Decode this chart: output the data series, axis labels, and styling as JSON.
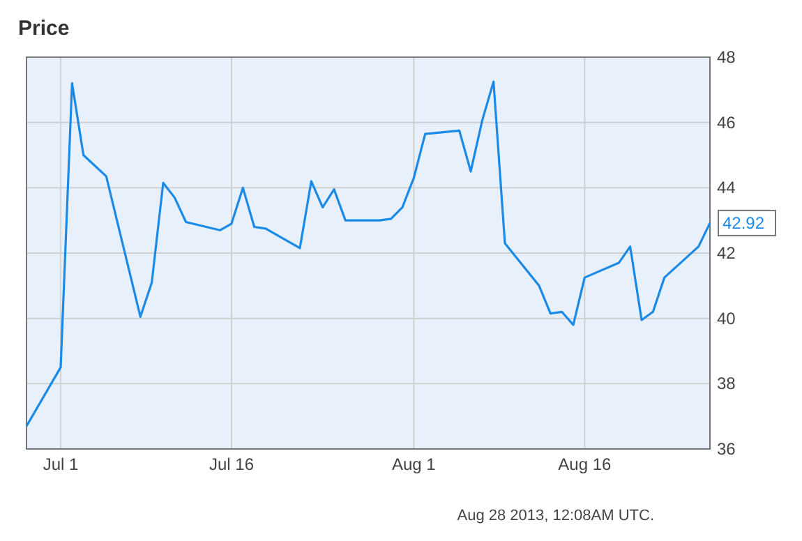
{
  "chart_data": {
    "type": "line",
    "title": "Price",
    "x": [
      "2013-06-28",
      "2013-07-01",
      "2013-07-02",
      "2013-07-03",
      "2013-07-05",
      "2013-07-08",
      "2013-07-09",
      "2013-07-10",
      "2013-07-11",
      "2013-07-12",
      "2013-07-15",
      "2013-07-16",
      "2013-07-17",
      "2013-07-18",
      "2013-07-19",
      "2013-07-22",
      "2013-07-23",
      "2013-07-24",
      "2013-07-25",
      "2013-07-26",
      "2013-07-29",
      "2013-07-30",
      "2013-07-31",
      "2013-08-01",
      "2013-08-02",
      "2013-08-05",
      "2013-08-06",
      "2013-08-07",
      "2013-08-08",
      "2013-08-09",
      "2013-08-12",
      "2013-08-13",
      "2013-08-14",
      "2013-08-15",
      "2013-08-16",
      "2013-08-19",
      "2013-08-20",
      "2013-08-21",
      "2013-08-22",
      "2013-08-23",
      "2013-08-26",
      "2013-08-27"
    ],
    "series": [
      {
        "color": "#1a8ae6",
        "values": [
          36.7,
          38.5,
          47.2,
          45.0,
          44.35,
          40.05,
          41.1,
          44.15,
          43.7,
          42.95,
          42.7,
          42.9,
          44.0,
          42.8,
          42.75,
          42.15,
          44.2,
          43.4,
          43.95,
          43.0,
          43.0,
          43.05,
          43.4,
          44.3,
          45.65,
          45.75,
          44.5,
          46.05,
          47.25,
          42.3,
          41.0,
          40.15,
          40.2,
          39.8,
          41.25,
          41.7,
          42.2,
          39.95,
          40.2,
          41.25,
          42.2,
          42.92
        ]
      }
    ],
    "xlim": [
      "2013-06-28",
      "2013-08-27"
    ],
    "xticks": [
      {
        "value": "2013-07-01",
        "label": "Jul 1"
      },
      {
        "value": "2013-07-16",
        "label": "Jul 16"
      },
      {
        "value": "2013-08-01",
        "label": "Aug 1"
      },
      {
        "value": "2013-08-16",
        "label": "Aug 16"
      }
    ],
    "ylim": [
      36,
      48
    ],
    "yticks": [
      36,
      38,
      40,
      42,
      44,
      46,
      48
    ],
    "grid": true,
    "marker": "none",
    "line_style": "solid",
    "annotations": [
      {
        "text": "42.92",
        "x": "2013-08-27",
        "y": 42.92
      },
      "Aug 28 2013, 12:08AM UTC."
    ]
  }
}
